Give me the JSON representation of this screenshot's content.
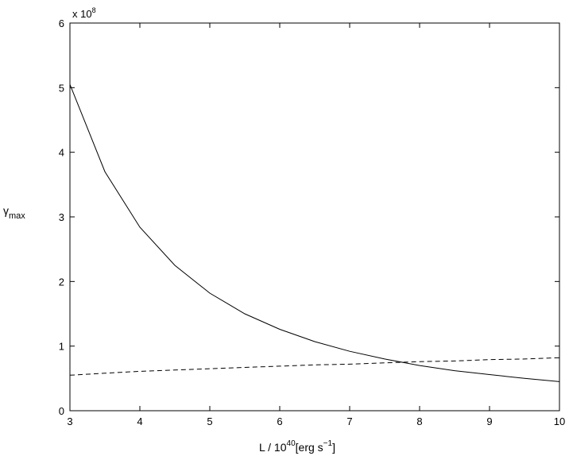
{
  "chart_data": {
    "type": "line",
    "title": "",
    "xlabel": {
      "base": "L / 10",
      "sup": "40",
      "unit": "[erg s",
      "unit_sup": "−1",
      "close": "]"
    },
    "ylabel": {
      "main": "γ",
      "sub": "max"
    },
    "y_multiplier": {
      "prefix": "x 10",
      "exp": "8"
    },
    "xlim": [
      3,
      10
    ],
    "ylim": [
      0,
      6
    ],
    "xticks": [
      3,
      4,
      5,
      6,
      7,
      8,
      9,
      10
    ],
    "yticks": [
      0,
      1,
      2,
      3,
      4,
      5,
      6
    ],
    "grid": false,
    "series": [
      {
        "style": "solid",
        "x": [
          3.0,
          3.5,
          4.0,
          4.5,
          5.0,
          5.5,
          6.0,
          6.5,
          7.0,
          7.5,
          8.0,
          8.5,
          9.0,
          9.5,
          10.0
        ],
        "y": [
          5.05,
          3.7,
          2.84,
          2.25,
          1.82,
          1.5,
          1.26,
          1.07,
          0.92,
          0.8,
          0.7,
          0.62,
          0.56,
          0.5,
          0.45
        ]
      },
      {
        "style": "dashed",
        "x": [
          3.0,
          3.5,
          4.0,
          4.5,
          5.0,
          5.5,
          6.0,
          6.5,
          7.0,
          7.5,
          8.0,
          8.5,
          9.0,
          9.5,
          10.0
        ],
        "y": [
          0.55,
          0.58,
          0.61,
          0.63,
          0.65,
          0.67,
          0.69,
          0.71,
          0.72,
          0.74,
          0.76,
          0.77,
          0.79,
          0.8,
          0.82
        ]
      }
    ]
  }
}
